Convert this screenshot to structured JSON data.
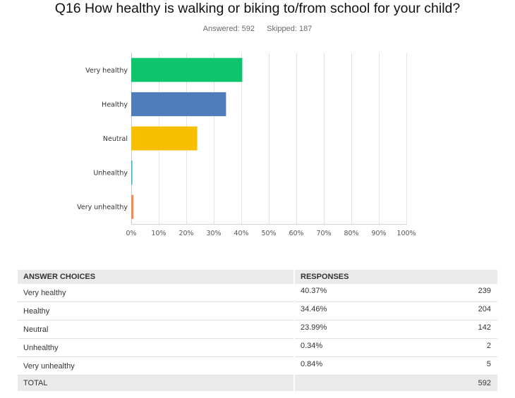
{
  "title": "Q16 How healthy is walking or biking to/from school for your child?",
  "answered": "Answered: 592",
  "skipped": "Skipped: 187",
  "chart_data": {
    "type": "bar",
    "orientation": "horizontal",
    "categories": [
      "Very healthy",
      "Healthy",
      "Neutral",
      "Unhealthy",
      "Very unhealthy"
    ],
    "values": [
      40.37,
      34.46,
      23.99,
      0.34,
      0.84
    ],
    "colors": [
      "#0ec46c",
      "#4f7cba",
      "#f6bf00",
      "#34b5c6",
      "#eb8e5a"
    ],
    "xlim": [
      0,
      100
    ],
    "xticks": [
      "0%",
      "10%",
      "20%",
      "30%",
      "40%",
      "50%",
      "60%",
      "70%",
      "80%",
      "90%",
      "100%"
    ],
    "grid": true,
    "xlabel": "",
    "ylabel": ""
  },
  "table": {
    "headers": {
      "choice": "ANSWER CHOICES",
      "responses": "RESPONSES"
    },
    "rows": [
      {
        "choice": "Very healthy",
        "pct": "40.37%",
        "count": "239"
      },
      {
        "choice": "Healthy",
        "pct": "34.46%",
        "count": "204"
      },
      {
        "choice": "Neutral",
        "pct": "23.99%",
        "count": "142"
      },
      {
        "choice": "Unhealthy",
        "pct": "0.34%",
        "count": "2"
      },
      {
        "choice": "Very unhealthy",
        "pct": "0.84%",
        "count": "5"
      }
    ],
    "total": {
      "label": "TOTAL",
      "count": "592"
    }
  }
}
